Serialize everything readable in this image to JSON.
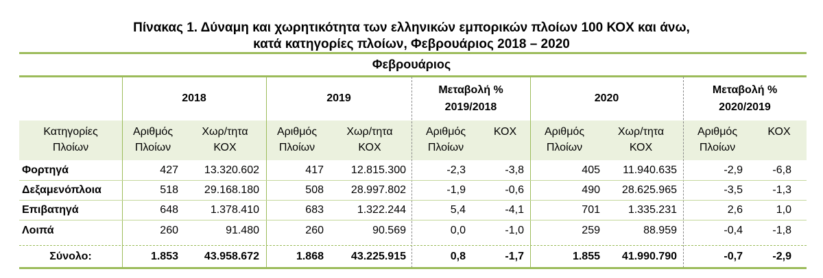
{
  "title": {
    "line1": "Πίνακας 1. Δύναμη και χωρητικότητα των ελληνικών εμπορικών πλοίων 100 ΚΟΧ και  άνω,",
    "line2": "κατά κατηγορίες πλοίων, Φεβρουάριος 2018 – 2020"
  },
  "section": "Φεβρουάριος",
  "headers": {
    "y2018": "2018",
    "y2019": "2019",
    "change1_line1": "Μεταβολή %",
    "change1_line2": "2019/2018",
    "y2020": "2020",
    "change2_line1": "Μεταβολή %",
    "change2_line2": "2020/2019"
  },
  "subheaders": {
    "category_line1": "Κατηγορίες",
    "category_line2": "Πλοίων",
    "count_line1": "Αριθμός",
    "count_line2": "Πλοίων",
    "tonnage_line1": "Χωρ/τητα",
    "tonnage_line2": "ΚΟΧ",
    "kox": "ΚΟΧ"
  },
  "rows": [
    {
      "category": "Φορτηγά",
      "n2018": "427",
      "t2018": "13.320.602",
      "n2019": "417",
      "t2019": "12.815.300",
      "cn1": "-2,3",
      "ck1": "-3,8",
      "n2020": "405",
      "t2020": "11.940.635",
      "cn2": "-2,9",
      "ck2": "-6,8"
    },
    {
      "category": "Δεξαμενόπλοια",
      "n2018": "518",
      "t2018": "29.168.180",
      "n2019": "508",
      "t2019": "28.997.802",
      "cn1": "-1,9",
      "ck1": "-0,6",
      "n2020": "490",
      "t2020": "28.625.965",
      "cn2": "-3,5",
      "ck2": "-1,3"
    },
    {
      "category": "Επιβατηγά",
      "n2018": "648",
      "t2018": "1.378.410",
      "n2019": "683",
      "t2019": "1.322.244",
      "cn1": "5,4",
      "ck1": "-4,1",
      "n2020": "701",
      "t2020": "1.335.231",
      "cn2": "2,6",
      "ck2": "1,0"
    },
    {
      "category": "Λοιπά",
      "n2018": "260",
      "t2018": "91.480",
      "n2019": "260",
      "t2019": "90.569",
      "cn1": "0,0",
      "ck1": "-1,0",
      "n2020": "259",
      "t2020": "88.959",
      "cn2": "-0,4",
      "ck2": "-1,8"
    }
  ],
  "total": {
    "label": "Σύνολο:",
    "n2018": "1.853",
    "t2018": "43.958.672",
    "n2019": "1.868",
    "t2019": "43.225.915",
    "cn1": "0,8",
    "ck1": "-1,7",
    "n2020": "1.855",
    "t2020": "41.990.790",
    "cn2": "-0,7",
    "ck2": "-2,9"
  },
  "colors": {
    "accent": "#9bbb59",
    "band": "#ebf1de"
  }
}
